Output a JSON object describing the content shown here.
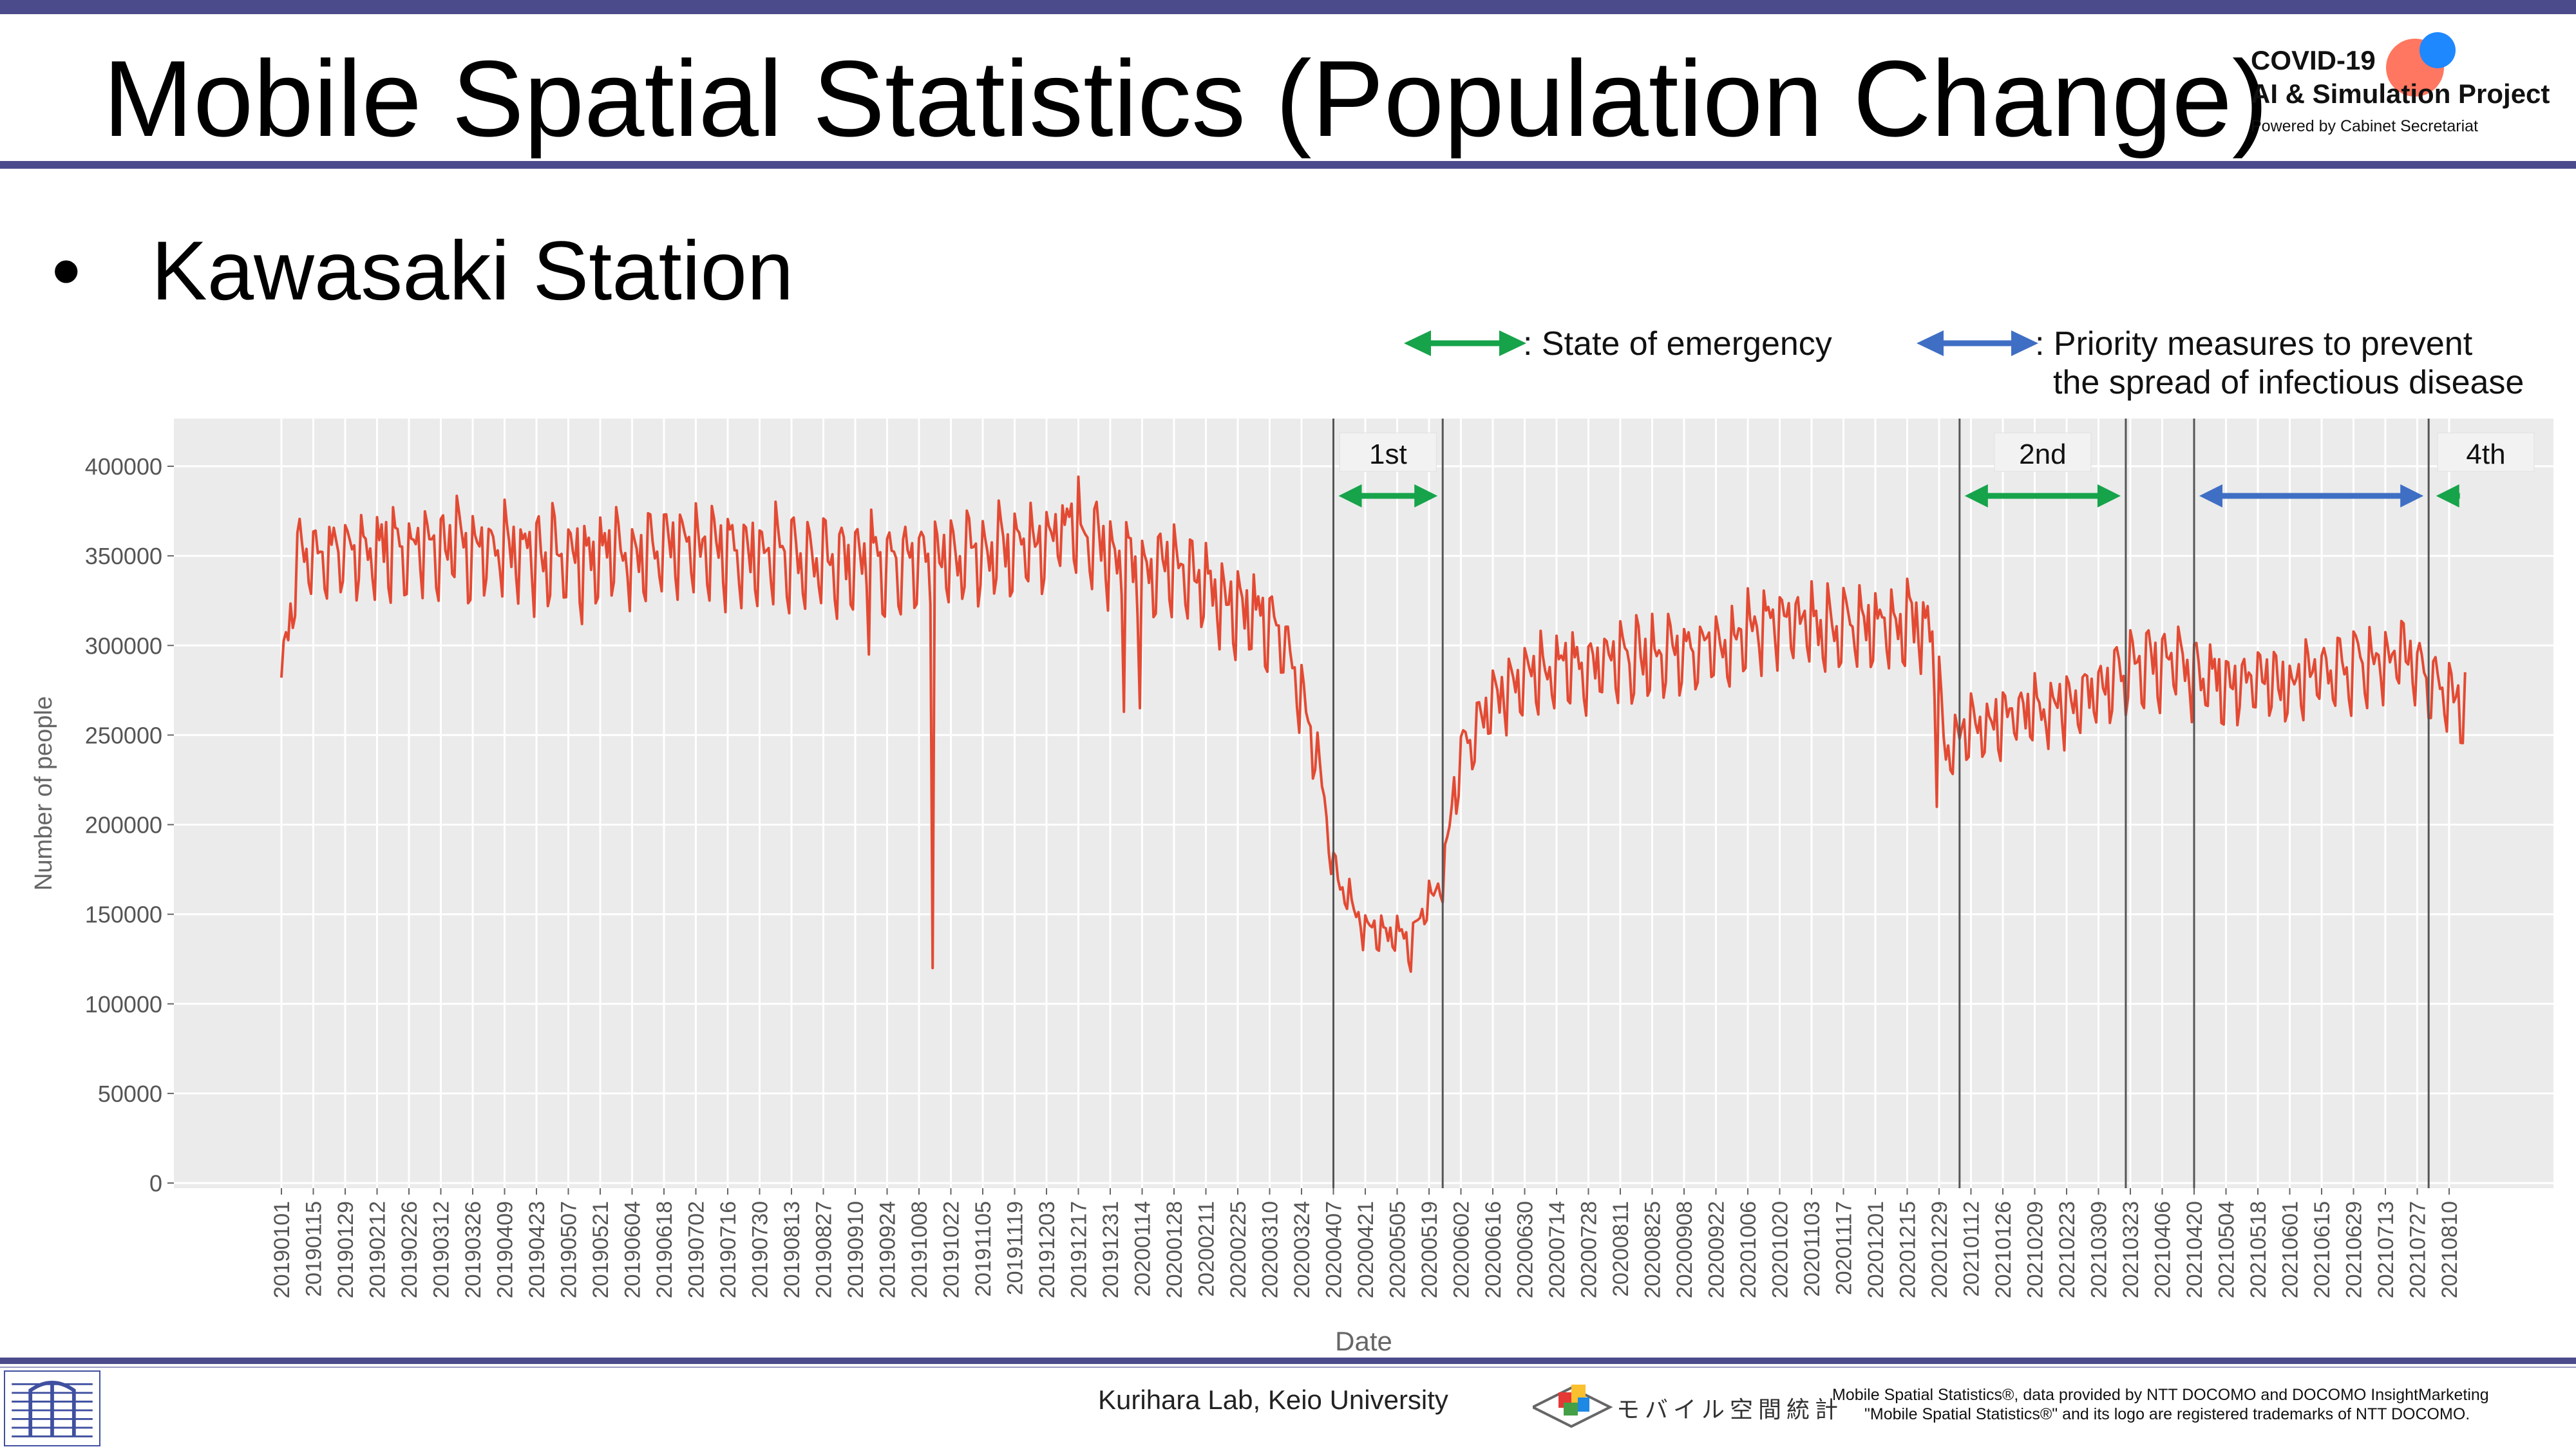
{
  "header": {
    "title": "Mobile Spatial Statistics (Population Change)",
    "logo_line1": "COVID-19",
    "logo_line2": "AI & Simulation Project",
    "logo_line3": "Powered by Cabinet Secretariat"
  },
  "content": {
    "bullet": "•",
    "subtitle": "Kawasaki Station"
  },
  "legend": {
    "emergency": ": State of emergency",
    "priority_line1": ": Priority measures to prevent",
    "priority_line2": "the spread of infectious disease"
  },
  "footer": {
    "lab": "Kurihara Lab, Keio University",
    "mobile_stats_logo": "モバイル空間統計",
    "credit_line1": "Mobile Spatial Statistics®, data provided by NTT DOCOMO and DOCOMO InsightMarketing",
    "credit_line2": "\"Mobile Spatial Statistics®\" and its logo are registered trademarks of NTT DOCOMO."
  },
  "colors": {
    "line": "#e34a33",
    "panel": "#ebebeb",
    "grid": "#ffffff",
    "emergency_arrow": "#16a34a",
    "priority_arrow": "#3f6fc4",
    "header_bar": "#4b4b8c"
  },
  "chart_data": {
    "type": "line",
    "xlabel": "Date",
    "ylabel": "Number of people",
    "ylim": [
      0,
      420000
    ],
    "yticks": [
      0,
      50000,
      100000,
      150000,
      200000,
      250000,
      300000,
      350000,
      400000
    ],
    "ytick_labels": [
      "0",
      "50000",
      "100000",
      "150000",
      "200000",
      "250000",
      "300000",
      "350000",
      "400000"
    ],
    "xtick_labels": [
      "20190101",
      "20190115",
      "20190129",
      "20190212",
      "20190226",
      "20190312",
      "20190326",
      "20190409",
      "20190423",
      "20190507",
      "20190521",
      "20190604",
      "20190618",
      "20190702",
      "20190716",
      "20190730",
      "20190813",
      "20190827",
      "20190910",
      "20190924",
      "20191008",
      "20191022",
      "20191105",
      "20191119",
      "20191203",
      "20191217",
      "20191231",
      "20200114",
      "20200128",
      "20200211",
      "20200225",
      "20200310",
      "20200324",
      "20200407",
      "20200421",
      "20200505",
      "20200519",
      "20200602",
      "20200616",
      "20200630",
      "20200714",
      "20200728",
      "20200811",
      "20200825",
      "20200908",
      "20200922",
      "20201006",
      "20201020",
      "20201103",
      "20201117",
      "20201201",
      "20201215",
      "20201229",
      "20210112",
      "20210126",
      "20210209",
      "20210223",
      "20210309",
      "20210323",
      "20210406",
      "20210420",
      "20210504",
      "20210518",
      "20210601",
      "20210615",
      "20210629",
      "20210713",
      "20210727",
      "20210810"
    ],
    "x_first": "20190101",
    "x_last": "20210817",
    "grid": true,
    "anchors": [
      [
        "20190101",
        282000
      ],
      [
        "20190108",
        350000
      ],
      [
        "20190301",
        355000
      ],
      [
        "20190501",
        352000
      ],
      [
        "20190801",
        352000
      ],
      [
        "20191001",
        345000
      ],
      [
        "20191101",
        350000
      ],
      [
        "20191216",
        365000
      ],
      [
        "20200110",
        345000
      ],
      [
        "20200201",
        342000
      ],
      [
        "20200301",
        318000
      ],
      [
        "20200315",
        305000
      ],
      [
        "20200325",
        270000
      ],
      [
        "20200401",
        230000
      ],
      [
        "20200407",
        175000
      ],
      [
        "20200420",
        145000
      ],
      [
        "20200510",
        135000
      ],
      [
        "20200525",
        170000
      ],
      [
        "20200601",
        235000
      ],
      [
        "20200615",
        265000
      ],
      [
        "20200701",
        288000
      ],
      [
        "20200801",
        288000
      ],
      [
        "20200901",
        295000
      ],
      [
        "20201001",
        303000
      ],
      [
        "20201015",
        315000
      ],
      [
        "20201101",
        310000
      ],
      [
        "20201201",
        310000
      ],
      [
        "20201225",
        312000
      ],
      [
        "20210101",
        240000
      ],
      [
        "20210110",
        255000
      ],
      [
        "20210201",
        260000
      ],
      [
        "20210301",
        270000
      ],
      [
        "20210401",
        292000
      ],
      [
        "20210501",
        280000
      ],
      [
        "20210601",
        278000
      ],
      [
        "20210701",
        290000
      ],
      [
        "20210720",
        295000
      ],
      [
        "20210801",
        280000
      ],
      [
        "20210817",
        265000
      ]
    ],
    "spikes": [
      [
        "20190101",
        282000
      ],
      [
        "20190422",
        316000
      ],
      [
        "20190513",
        312000
      ],
      [
        "20190729",
        322000
      ],
      [
        "20190812",
        318000
      ],
      [
        "20190916",
        295000
      ],
      [
        "20191014",
        120000
      ],
      [
        "20200106",
        263000
      ],
      [
        "20200113",
        265000
      ],
      [
        "20200420",
        130000
      ],
      [
        "20200511",
        118000
      ],
      [
        "20201228",
        210000
      ],
      [
        "20210809",
        252000
      ]
    ],
    "weekly_amplitude": 38000,
    "annotations": [
      {
        "label": "1st",
        "type": "emergency",
        "start": "20200407",
        "end": "20200525"
      },
      {
        "label": "2nd",
        "type": "emergency",
        "start": "20210107",
        "end": "20210321"
      },
      {
        "label": "",
        "type": "priority",
        "start": "20210420",
        "end": "20210801"
      },
      {
        "label": "4th",
        "type": "emergency",
        "start": "20210802",
        "end": "20210817"
      }
    ],
    "vlines": [
      "20200407",
      "20200525",
      "20210107",
      "20210321",
      "20210420",
      "20210801"
    ]
  }
}
